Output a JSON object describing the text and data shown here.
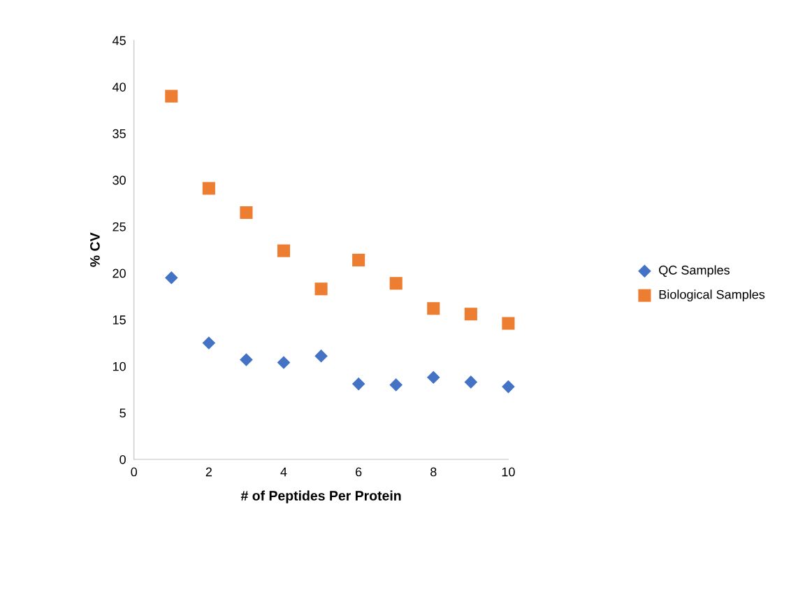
{
  "chart_data": {
    "type": "scatter",
    "xlabel": "# of Peptides Per Protein",
    "ylabel": "% CV",
    "xlim": [
      0,
      10
    ],
    "xticks": [
      0,
      2,
      4,
      6,
      8,
      10
    ],
    "ylim": [
      0,
      45
    ],
    "yticks": [
      0,
      5,
      10,
      15,
      20,
      25,
      30,
      35,
      40,
      45
    ],
    "grid": false,
    "legend": "right",
    "series": [
      {
        "name": "QC Samples",
        "color": "#4472c4",
        "marker": "diamond",
        "x": [
          1,
          2,
          3,
          4,
          5,
          6,
          7,
          8,
          9,
          10
        ],
        "values": [
          19.5,
          12.5,
          10.7,
          10.4,
          11.1,
          8.1,
          8.0,
          8.8,
          8.3,
          7.8
        ]
      },
      {
        "name": "Biological Samples",
        "color": "#ed7d31",
        "marker": "square",
        "x": [
          1,
          2,
          3,
          4,
          5,
          6,
          7,
          8,
          9,
          10
        ],
        "values": [
          39.0,
          29.1,
          26.5,
          22.4,
          18.3,
          21.4,
          18.9,
          16.2,
          15.6,
          14.6
        ]
      }
    ]
  }
}
